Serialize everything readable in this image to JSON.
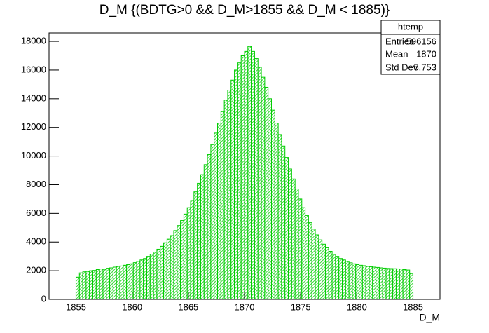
{
  "chart_data": {
    "type": "histogram",
    "title": "D_M {(BDTG>0 && D_M>1855 && D_M < 1885)}",
    "x_label": "D_M",
    "color": "#00cc00",
    "bins": [
      1855,
      1855.3,
      1855.6,
      1855.9,
      1856.2,
      1856.5,
      1856.8,
      1857.1,
      1857.4,
      1857.7,
      1858,
      1858.3,
      1858.6,
      1858.9,
      1859.2,
      1859.5,
      1859.8,
      1860.1,
      1860.4,
      1860.7,
      1861,
      1861.3,
      1861.6,
      1861.9,
      1862.2,
      1862.5,
      1862.8,
      1863.1,
      1863.4,
      1863.7,
      1864,
      1864.3,
      1864.6,
      1864.9,
      1865.2,
      1865.5,
      1865.8,
      1866.1,
      1866.4,
      1866.7,
      1867,
      1867.3,
      1867.6,
      1867.9,
      1868.2,
      1868.5,
      1868.8,
      1869.1,
      1869.4,
      1869.7,
      1870,
      1870.3,
      1870.6,
      1870.9,
      1871.2,
      1871.5,
      1871.8,
      1872.1,
      1872.4,
      1872.7,
      1873,
      1873.3,
      1873.6,
      1873.9,
      1874.2,
      1874.5,
      1874.8,
      1875.1,
      1875.4,
      1875.7,
      1876,
      1876.3,
      1876.6,
      1876.9,
      1877.2,
      1877.5,
      1877.8,
      1878.1,
      1878.4,
      1878.7,
      1879,
      1879.3,
      1879.6,
      1879.9,
      1880.2,
      1880.5,
      1880.8,
      1881.1,
      1881.4,
      1881.7,
      1882,
      1882.3,
      1882.6,
      1882.9,
      1883.2,
      1883.5,
      1883.8,
      1884.1,
      1884.4,
      1884.7,
      1885
    ],
    "values": [
      1550,
      1850,
      1920,
      1950,
      2000,
      2020,
      2080,
      2120,
      2100,
      2170,
      2200,
      2250,
      2300,
      2330,
      2380,
      2420,
      2480,
      2560,
      2650,
      2750,
      2850,
      3000,
      3150,
      3300,
      3500,
      3700,
      3950,
      4200,
      4450,
      4800,
      5150,
      5500,
      5950,
      6400,
      6900,
      7500,
      8100,
      8700,
      9400,
      10100,
      10800,
      11600,
      12300,
      13100,
      13900,
      14600,
      15300,
      16000,
      16500,
      17000,
      17300,
      17650,
      17300,
      16800,
      16200,
      15500,
      14800,
      14000,
      13200,
      12300,
      11500,
      10700,
      9900,
      9100,
      8400,
      7700,
      7000,
      6400,
      5850,
      5350,
      4900,
      4500,
      4150,
      3850,
      3600,
      3350,
      3150,
      3000,
      2850,
      2750,
      2650,
      2550,
      2480,
      2420,
      2380,
      2350,
      2300,
      2280,
      2250,
      2230,
      2200,
      2180,
      2160,
      2150,
      2140,
      2130,
      2120,
      2080,
      2050,
      1800
    ],
    "xlim": [
      1852.6,
      1887.4
    ],
    "ylim": [
      0,
      18590
    ],
    "xticks": [
      1855,
      1860,
      1865,
      1870,
      1875,
      1880,
      1885
    ],
    "yticks": [
      0,
      2000,
      4000,
      6000,
      8000,
      10000,
      12000,
      14000,
      16000,
      18000
    ],
    "stats": {
      "title": "htemp",
      "rows": [
        {
          "label": "Entries",
          "value": 596156
        },
        {
          "label": "Mean",
          "value": 1870
        },
        {
          "label": "Std Dev",
          "value": 5.753
        }
      ]
    }
  }
}
